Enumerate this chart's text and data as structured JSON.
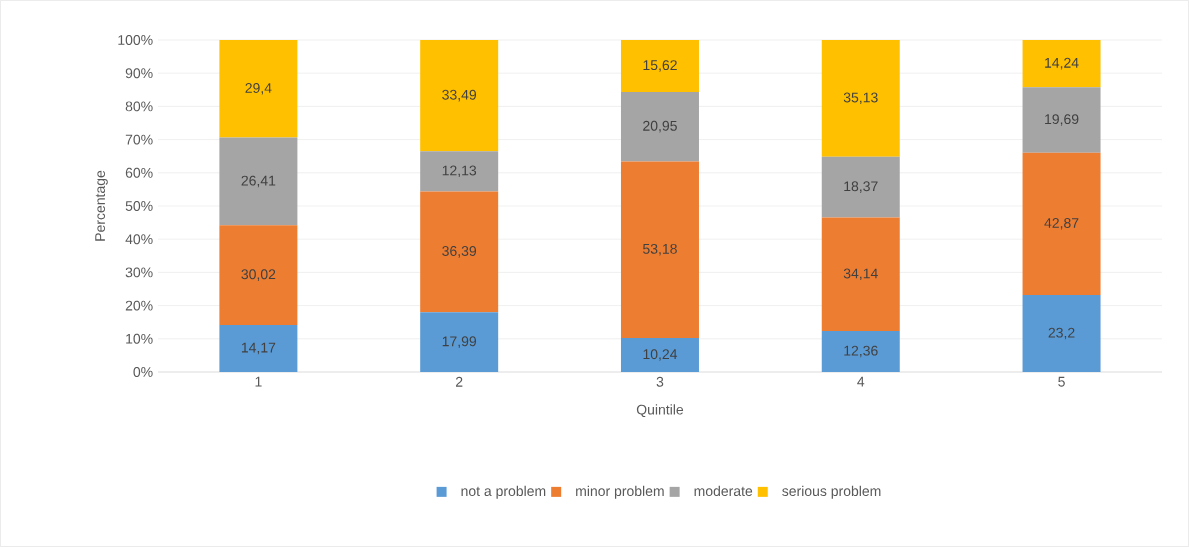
{
  "chart_data": {
    "type": "bar",
    "stacked": true,
    "xlabel": "Quintile",
    "ylabel": "Percentage",
    "categories": [
      "1",
      "2",
      "3",
      "4",
      "5"
    ],
    "series": [
      {
        "name": "not a problem",
        "color": "#5b9bd5",
        "values": [
          14.17,
          17.99,
          10.24,
          12.36,
          23.2
        ],
        "value_labels": [
          "14,17",
          "17,99",
          "10,24",
          "12,36",
          "23,2"
        ]
      },
      {
        "name": "minor problem",
        "color": "#ed7d31",
        "values": [
          30.02,
          36.39,
          53.18,
          34.14,
          42.87
        ],
        "value_labels": [
          "30,02",
          "36,39",
          "53,18",
          "34,14",
          "42,87"
        ]
      },
      {
        "name": "moderate",
        "color": "#a5a5a5",
        "values": [
          26.41,
          12.13,
          20.95,
          18.37,
          19.69
        ],
        "value_labels": [
          "26,41",
          "12,13",
          "20,95",
          "18,37",
          "19,69"
        ]
      },
      {
        "name": "serious problem",
        "color": "#ffc000",
        "values": [
          29.4,
          33.49,
          15.62,
          35.13,
          14.24
        ],
        "value_labels": [
          "29,4",
          "33,49",
          "15,62",
          "35,13",
          "14,24"
        ]
      }
    ],
    "ylim": [
      0,
      100
    ],
    "yticks": [
      {
        "value": 0,
        "label": "0%"
      },
      {
        "value": 10,
        "label": "10%"
      },
      {
        "value": 20,
        "label": "20%"
      },
      {
        "value": 30,
        "label": "30%"
      },
      {
        "value": 40,
        "label": "40%"
      },
      {
        "value": 50,
        "label": "50%"
      },
      {
        "value": 60,
        "label": "60%"
      },
      {
        "value": 70,
        "label": "70%"
      },
      {
        "value": 80,
        "label": "80%"
      },
      {
        "value": 90,
        "label": "90%"
      },
      {
        "value": 100,
        "label": "100%"
      }
    ],
    "grid": "y",
    "legend": "bottom"
  }
}
